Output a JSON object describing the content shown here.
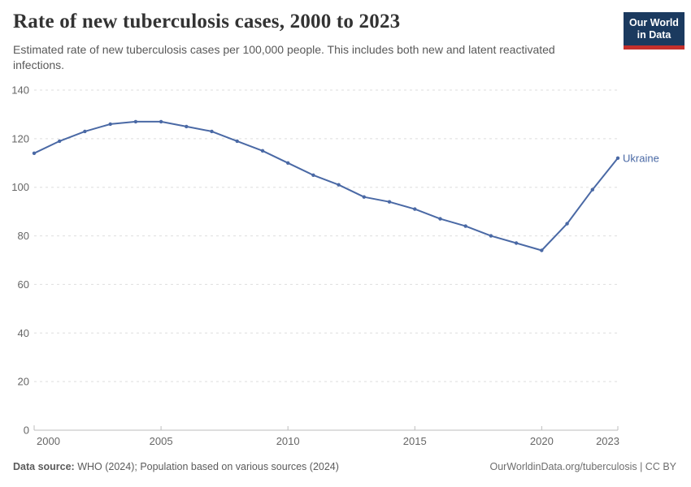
{
  "header": {
    "title": "Rate of new tuberculosis cases, 2000 to 2023",
    "subtitle": "Estimated rate of new tuberculosis cases per 100,000 people. This includes both new and latent reactivated infections."
  },
  "logo": {
    "line1": "Our World",
    "line2": "in Data",
    "bg_color": "#1b3a5f",
    "bar_color": "#c5302c"
  },
  "chart_data": {
    "type": "line",
    "title": "Rate of new tuberculosis cases, 2000 to 2023",
    "x": [
      2000,
      2001,
      2002,
      2003,
      2004,
      2005,
      2006,
      2007,
      2008,
      2009,
      2010,
      2011,
      2012,
      2013,
      2014,
      2015,
      2016,
      2017,
      2018,
      2019,
      2020,
      2021,
      2022,
      2023
    ],
    "series": [
      {
        "name": "Ukraine",
        "color": "#4a69a5",
        "values": [
          114,
          119,
          123,
          126,
          127,
          127,
          125,
          123,
          119,
          115,
          110,
          105,
          101,
          96,
          94,
          91,
          87,
          84,
          80,
          77,
          74,
          85,
          99,
          112
        ]
      }
    ],
    "ylim": [
      0,
      140
    ],
    "yticks": [
      0,
      20,
      40,
      60,
      80,
      100,
      120,
      140
    ],
    "xticks": [
      2000,
      2005,
      2010,
      2015,
      2020,
      2023
    ],
    "ylabel": "",
    "xlabel": "",
    "grid": "horizontal-dashed",
    "grid_color": "#dedede",
    "axis_color": "#bdbdbd",
    "tick_label_color": "#666666",
    "legend_position": "line-end-label"
  },
  "footer": {
    "datasource_label": "Data source:",
    "datasource_text": "WHO (2024); Population based on various sources (2024)",
    "link_text": "OurWorldinData.org/tuberculosis | CC BY"
  }
}
